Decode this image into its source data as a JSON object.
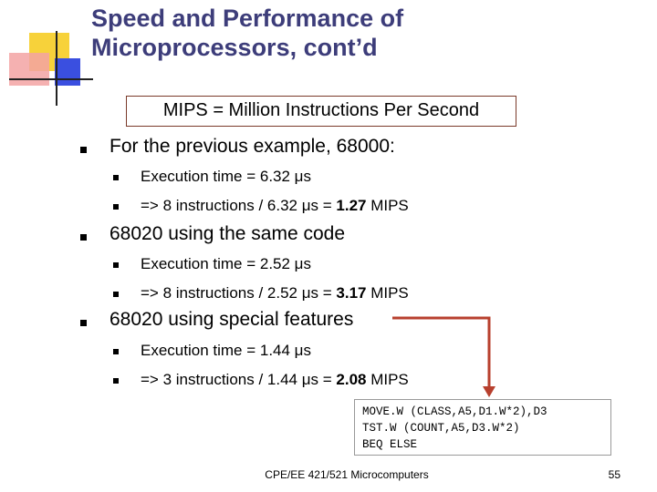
{
  "title": {
    "line1": "Speed and Performance of",
    "line2": "Microprocessors, cont’d"
  },
  "mips_definition": "MIPS = Million Instructions Per Second",
  "bullets": [
    {
      "text": "For the previous example, 68000:",
      "sub": [
        {
          "text": "Execution time = 6.32 μs"
        },
        {
          "prefix": "=> 8 instructions / 6.32 μs = ",
          "bold": "1.27",
          "suffix": " MIPS"
        }
      ]
    },
    {
      "text": "68020 using the same code",
      "sub": [
        {
          "text": "Execution time = 2.52 μs"
        },
        {
          "prefix": "=> 8 instructions / 2.52 μs = ",
          "bold": "3.17",
          "suffix": " MIPS"
        }
      ]
    },
    {
      "text": "68020 using special features",
      "sub": [
        {
          "text": "Execution time = 1.44 μs"
        },
        {
          "prefix": "=> 3 instructions / 1.44 μs = ",
          "bold": "2.08",
          "suffix": " MIPS"
        }
      ]
    }
  ],
  "code_lines": [
    "MOVE.W (CLASS,A5,D1.W*2),D3",
    "TST.W (COUNT,A5,D3.W*2)",
    "BEQ ELSE"
  ],
  "footer": "CPE/EE 421/521 Microcomputers",
  "page_number": "55",
  "colors": {
    "title": "#3d3d7a",
    "accent_red": "#b8402e",
    "deco_yellow": "#f7d23a",
    "deco_blue": "#3a4fe0"
  }
}
